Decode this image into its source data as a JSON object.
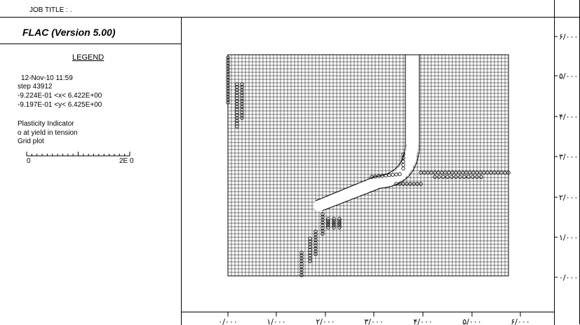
{
  "header": {
    "job_title": "JOB TITLE : .",
    "app_title": "FLAC (Version 5.00)"
  },
  "legend": {
    "title": "LEGEND",
    "date_time": "12-Nov-10  11:59",
    "step": "step    43912",
    "x_range": "-9.224E-01 <x<  6.422E+00",
    "y_range": "-9.197E-01 <y<  6.425E+00",
    "plasticity": "Plasticity Indicator",
    "yield": "o at yield in tension",
    "grid_plot": "Grid plot",
    "scale_min": "0",
    "scale_max": "2E  0"
  },
  "plot": {
    "x_ticks": [
      "۰/۰۰۰",
      "۱/۰۰۰",
      "۲/۰۰۰",
      "۳/۰۰۰",
      "۴/۰۰۰",
      "۵/۰۰۰",
      "۶/۰۰۰"
    ],
    "y_ticks": [
      "۶/۰۰۰",
      "۵/۰۰۰",
      "۴/۰۰۰",
      "۳/۰۰۰",
      "۲/۰۰۰",
      "۱/۰۰۰",
      "۰/۰۰۰"
    ],
    "grid_color": "#000000",
    "marker": "o"
  }
}
